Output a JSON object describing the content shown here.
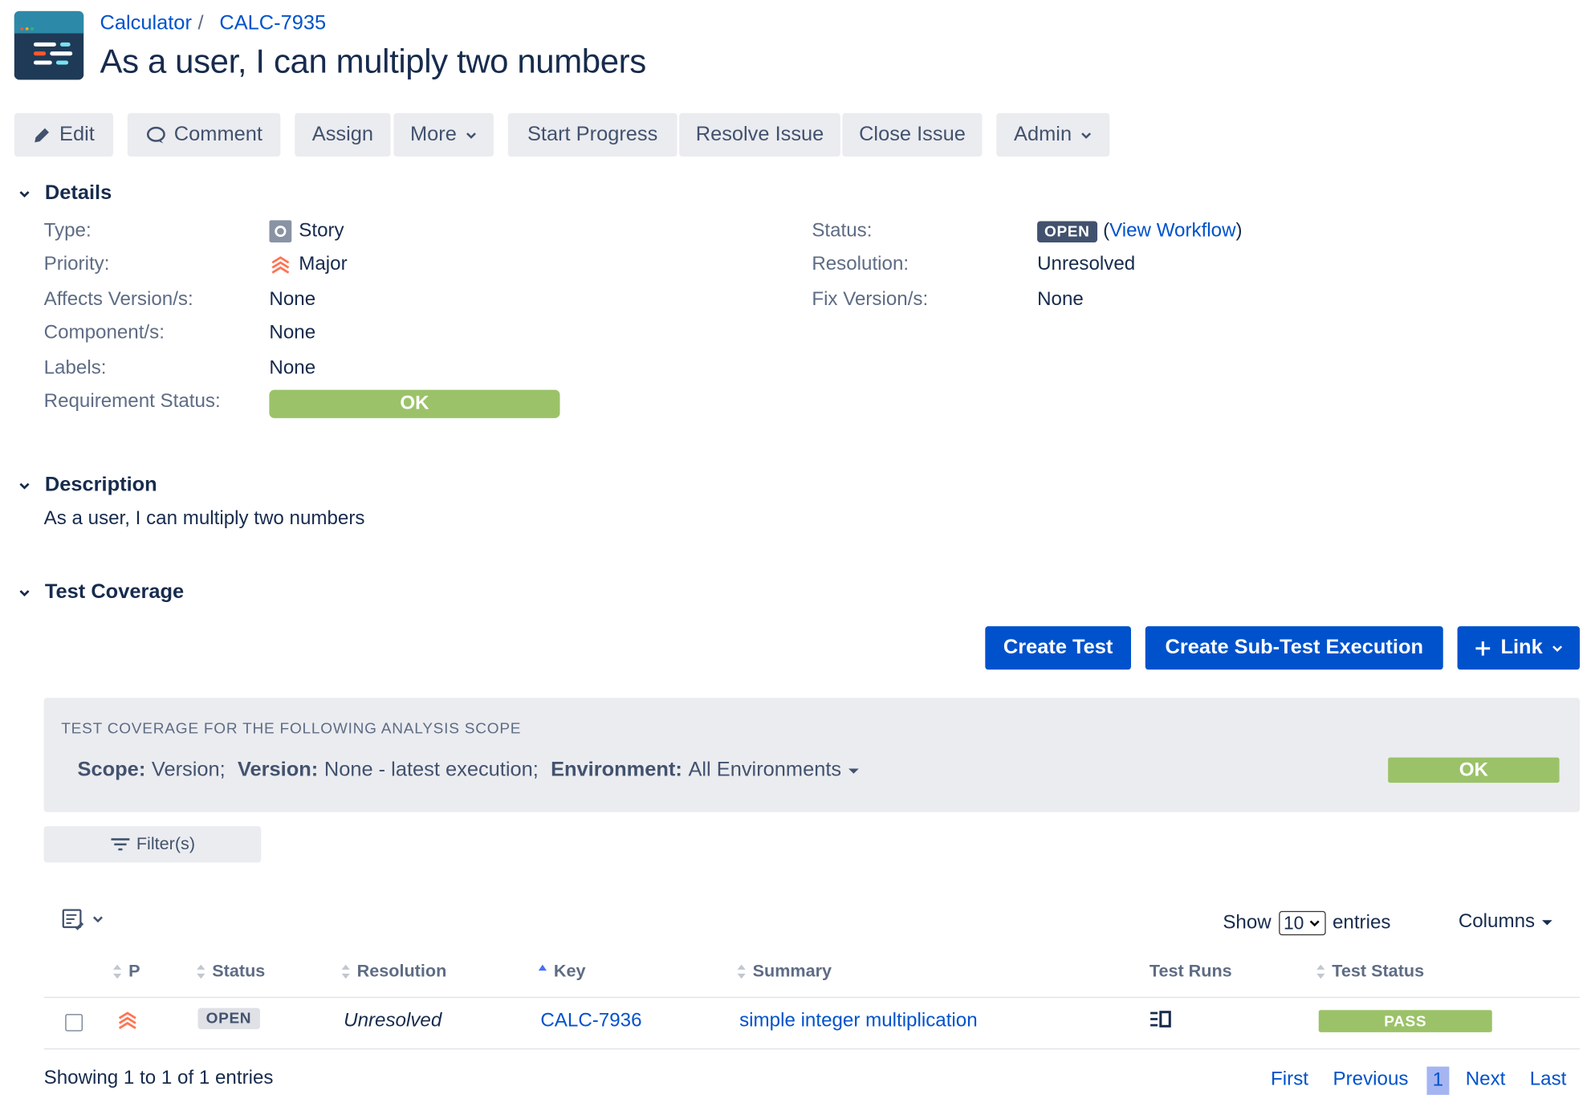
{
  "breadcrumb": {
    "project": "Calculator",
    "separator": "/",
    "issue_key": "CALC-7935"
  },
  "issue": {
    "title": "As a user, I can multiply two numbers"
  },
  "toolbar": {
    "edit": "Edit",
    "comment": "Comment",
    "assign": "Assign",
    "more": "More",
    "start_progress": "Start Progress",
    "resolve_issue": "Resolve Issue",
    "close_issue": "Close Issue",
    "admin": "Admin"
  },
  "details": {
    "heading": "Details",
    "type_label": "Type:",
    "type_value": "Story",
    "priority_label": "Priority:",
    "priority_value": "Major",
    "affects_label": "Affects Version/s:",
    "affects_value": "None",
    "components_label": "Component/s:",
    "components_value": "None",
    "labels_label": "Labels:",
    "labels_value": "None",
    "req_status_label": "Requirement Status:",
    "req_status_value": "OK",
    "status_label": "Status:",
    "status_value": "OPEN",
    "view_workflow": "View Workflow",
    "resolution_label": "Resolution:",
    "resolution_value": "Unresolved",
    "fix_label": "Fix Version/s:",
    "fix_value": "None"
  },
  "description": {
    "heading": "Description",
    "text": "As a user, I can multiply two numbers"
  },
  "coverage": {
    "heading": "Test Coverage",
    "create_test": "Create Test",
    "create_sub_test_execution": "Create Sub-Test Execution",
    "link": "Link",
    "scope_title": "TEST COVERAGE FOR THE FOLLOWING ANALYSIS SCOPE",
    "scope_label": "Scope:",
    "scope_value": "Version;",
    "version_label": "Version:",
    "version_value": "None - latest execution;",
    "environment_label": "Environment:",
    "environment_value": "All Environments",
    "scope_status": "OK",
    "filters": "Filter(s)",
    "show_label": "Show",
    "entries_per_page": "10",
    "entries_label": "entries",
    "columns": "Columns"
  },
  "table": {
    "headers": {
      "p": "P",
      "status": "Status",
      "resolution": "Resolution",
      "key": "Key",
      "summary": "Summary",
      "test_runs": "Test Runs",
      "test_status": "Test Status"
    },
    "rows": [
      {
        "status": "OPEN",
        "resolution": "Unresolved",
        "key": "CALC-7936",
        "summary": "simple integer multiplication",
        "test_status": "PASS"
      }
    ],
    "showing": "Showing 1 to 1 of 1 entries"
  },
  "pagination": {
    "first": "First",
    "previous": "Previous",
    "current": "1",
    "next": "Next",
    "last": "Last"
  },
  "colors": {
    "primary": "#0052cc",
    "ok": "#9bc268",
    "open_badge": "#42526e",
    "priority_major": "#ff7452"
  }
}
